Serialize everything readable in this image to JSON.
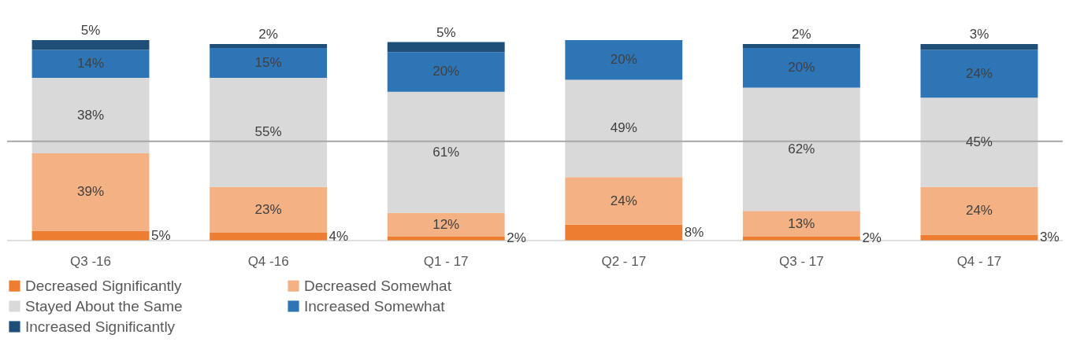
{
  "chart_data": {
    "type": "bar",
    "stacked": true,
    "categories": [
      "Q3 -16",
      "Q4 -16",
      "Q1 - 17",
      "Q2 - 17",
      "Q3 - 17",
      "Q4 - 17"
    ],
    "series": [
      {
        "name": "Decreased Significantly",
        "color": "#ed7d31",
        "values": [
          5,
          4,
          2,
          8,
          2,
          3
        ],
        "value_labels": [
          "5%",
          "4%",
          "2%",
          "8%",
          "2%",
          "3%"
        ]
      },
      {
        "name": "Decreased Somewhat",
        "color": "#f4b183",
        "values": [
          39,
          23,
          12,
          24,
          13,
          24
        ],
        "value_labels": [
          "39%",
          "23%",
          "12%",
          "24%",
          "13%",
          "24%"
        ]
      },
      {
        "name": "Stayed About the Same",
        "color": "#d9d9d9",
        "values": [
          38,
          55,
          61,
          49,
          62,
          45
        ],
        "value_labels": [
          "38%",
          "55%",
          "61%",
          "49%",
          "62%",
          "45%"
        ]
      },
      {
        "name": "Increased Somewhat",
        "color": "#2e75b6",
        "values": [
          14,
          15,
          20,
          20,
          20,
          24
        ],
        "value_labels": [
          "14%",
          "15%",
          "20%",
          "20%",
          "20%",
          "24%"
        ]
      },
      {
        "name": "Increased Significantly",
        "color": "#1f4e79",
        "values": [
          5,
          2,
          5,
          null,
          2,
          3
        ],
        "value_labels": [
          "5%",
          "2%",
          "5%",
          null,
          "2%",
          "3%"
        ]
      }
    ],
    "ref_lines": [
      {
        "axis": "y",
        "value": 50,
        "color": "#a6a6a6"
      }
    ],
    "legend": "bottom",
    "tick_labels": "x",
    "grid": false
  }
}
